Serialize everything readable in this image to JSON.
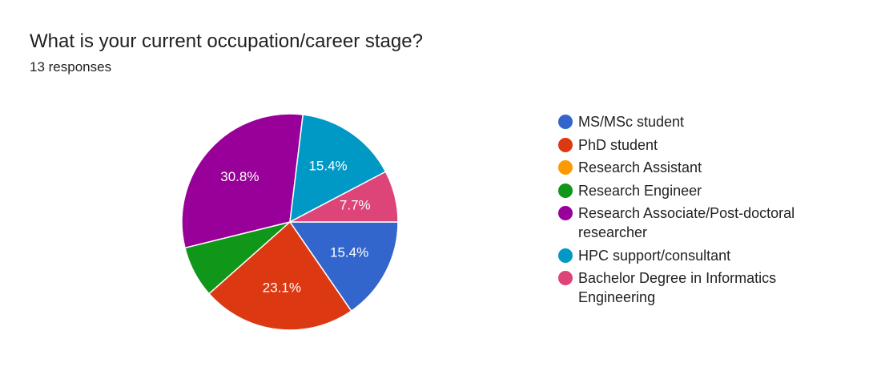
{
  "title": "What is your current occupation/career stage?",
  "subtitle": "13 responses",
  "chart_data": {
    "type": "pie",
    "total": 13,
    "categories": [
      "MS/MSc student",
      "PhD student",
      "Research Assistant",
      "Research Engineer",
      "Research Associate/Post-doctoral researcher",
      "HPC support/consultant",
      "Bachelor Degree in Informatics Engineering"
    ],
    "values": [
      2,
      3,
      0,
      1,
      4,
      2,
      1
    ],
    "percent_labels": [
      "15.4%",
      "23.1%",
      "",
      "",
      "30.8%",
      "15.4%",
      "7.7%"
    ],
    "colors": [
      "#3366cc",
      "#dc3912",
      "#ff9900",
      "#109618",
      "#990099",
      "#0099c6",
      "#dd4477"
    ],
    "start_angle_deg": 90,
    "direction": "clockwise",
    "legend_position": "right"
  }
}
